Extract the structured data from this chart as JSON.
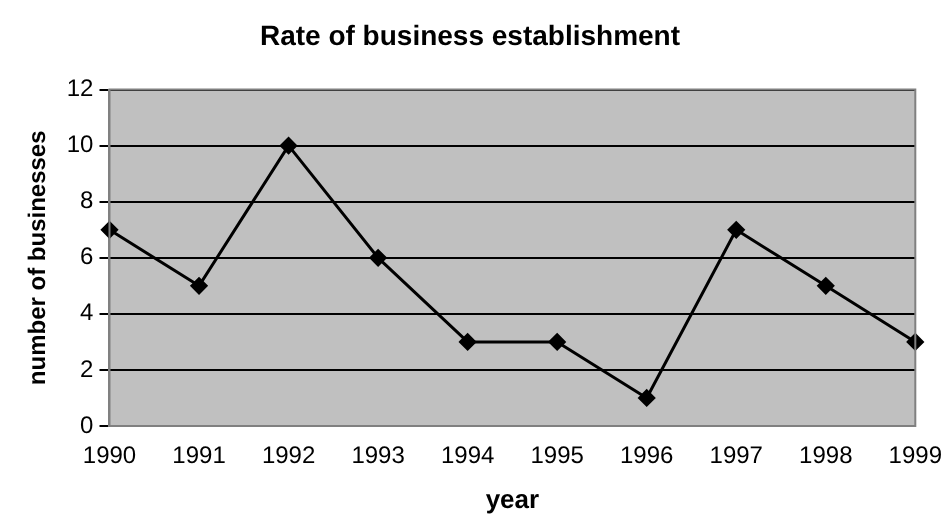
{
  "chart_data": {
    "type": "line",
    "title": "Rate of business establishment",
    "xlabel": "year",
    "ylabel": "number of businesses",
    "categories": [
      "1990",
      "1991",
      "1992",
      "1993",
      "1994",
      "1995",
      "1996",
      "1997",
      "1998",
      "1999"
    ],
    "series": [
      {
        "color": "#000000",
        "values": [
          7,
          5,
          10,
          6,
          3,
          3,
          1,
          7,
          5,
          3
        ]
      }
    ],
    "ylim": [
      0,
      12
    ],
    "yticks": [
      0,
      2,
      4,
      6,
      8,
      10,
      12
    ],
    "grid": "y",
    "legend": false,
    "marker": "diamond",
    "line_style": "solid"
  }
}
